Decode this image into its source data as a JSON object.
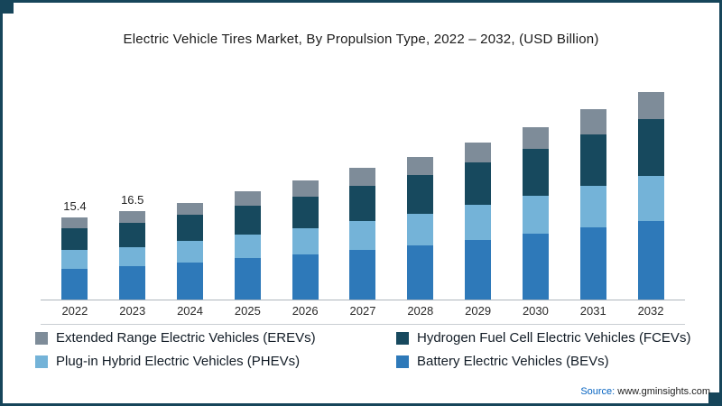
{
  "chart_data": {
    "type": "bar",
    "stacked": true,
    "title": "Electric Vehicle Tires Market, By Propulsion Type, 2022 – 2032, (USD Billion)",
    "categories": [
      "2022",
      "2023",
      "2024",
      "2025",
      "2026",
      "2027",
      "2028",
      "2029",
      "2030",
      "2031",
      "2032"
    ],
    "series": [
      {
        "name": "Battery Electric Vehicles (BEVs)",
        "color": "#2e79b9",
        "values": [
          5.8,
          6.2,
          6.9,
          7.7,
          8.4,
          9.3,
          10.1,
          11.2,
          12.3,
          13.5,
          14.7
        ]
      },
      {
        "name": "Plug-in Hybrid Electric Vehicles (PHEVs)",
        "color": "#74b3d8",
        "values": [
          3.4,
          3.6,
          4.0,
          4.4,
          4.9,
          5.4,
          5.9,
          6.5,
          7.1,
          7.8,
          8.5
        ]
      },
      {
        "name": "Hydrogen Fuel Cell Electric Vehicles (FCEVs)",
        "color": "#17495e",
        "values": [
          4.2,
          4.5,
          4.9,
          5.5,
          6.0,
          6.6,
          7.2,
          7.9,
          8.7,
          9.6,
          10.5
        ]
      },
      {
        "name": "Extended Range Electric Vehicles (EREVs)",
        "color": "#7e8c99",
        "values": [
          2.0,
          2.2,
          2.3,
          2.6,
          2.9,
          3.3,
          3.5,
          3.8,
          4.2,
          4.7,
          5.1
        ]
      }
    ],
    "totals": [
      15.4,
      16.5,
      18.1,
      20.2,
      22.2,
      24.6,
      26.7,
      29.4,
      32.3,
      35.6,
      38.8
    ],
    "data_labels": [
      "15.4",
      "16.5",
      "",
      "",
      "",
      "",
      "",
      "",
      "",
      "",
      ""
    ],
    "xlabel": "",
    "ylabel": "",
    "ylim": [
      0,
      41
    ],
    "grid": false,
    "legend_position": "bottom"
  },
  "legend": {
    "items": [
      {
        "label": "Extended Range Electric Vehicles (EREVs)",
        "color": "#7e8c99"
      },
      {
        "label": "Hydrogen Fuel Cell Electric Vehicles (FCEVs)",
        "color": "#17495e"
      },
      {
        "label": "Plug-in Hybrid Electric Vehicles (PHEVs)",
        "color": "#74b3d8"
      },
      {
        "label": "Battery Electric Vehicles (BEVs)",
        "color": "#2e79b9"
      }
    ]
  },
  "source": {
    "prefix": "Source:",
    "text": "www.gminsights.com"
  }
}
